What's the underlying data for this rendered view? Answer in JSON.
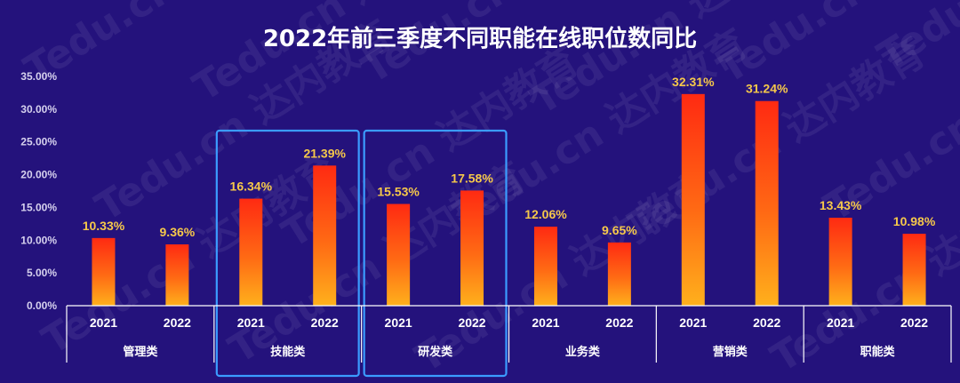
{
  "chart_data": {
    "type": "bar",
    "title": "2022年前三季度不同职能在线职位数同比",
    "ylim": [
      0,
      35
    ],
    "yticks": [
      "0.00%",
      "5.00%",
      "10.00%",
      "15.00%",
      "20.00%",
      "25.00%",
      "30.00%",
      "35.00%"
    ],
    "tick_values": [
      0,
      5,
      10,
      15,
      20,
      25,
      30,
      35
    ],
    "groups": [
      "管理类",
      "技能类",
      "研发类",
      "业务类",
      "营销类",
      "职能类"
    ],
    "x_labels": [
      "2021",
      "2022"
    ],
    "values": [
      [
        10.33,
        9.36
      ],
      [
        16.34,
        21.39
      ],
      [
        15.53,
        17.58
      ],
      [
        12.06,
        9.65
      ],
      [
        32.31,
        31.24
      ],
      [
        13.43,
        10.98
      ]
    ],
    "value_labels": [
      [
        "10.33%",
        "9.36%"
      ],
      [
        "16.34%",
        "21.39%"
      ],
      [
        "15.53%",
        "17.58%"
      ],
      [
        "12.06%",
        "9.65%"
      ],
      [
        "32.31%",
        "31.24%"
      ],
      [
        "13.43%",
        "10.98%"
      ]
    ],
    "highlighted_groups": [
      "技能类",
      "研发类"
    ],
    "grid": false,
    "legend": "none"
  },
  "watermark": "Tedu.cn 达内教育",
  "colors": {
    "background": "#24127c",
    "bar_top": "#ff2a12",
    "bar_bottom": "#ffb01c",
    "value_label": "#f6c84a",
    "axis_text": "#ffffff",
    "y_tick_text": "#d6d1ee",
    "highlight_box": "#3b9cff",
    "axis_line": "#ffffff"
  }
}
